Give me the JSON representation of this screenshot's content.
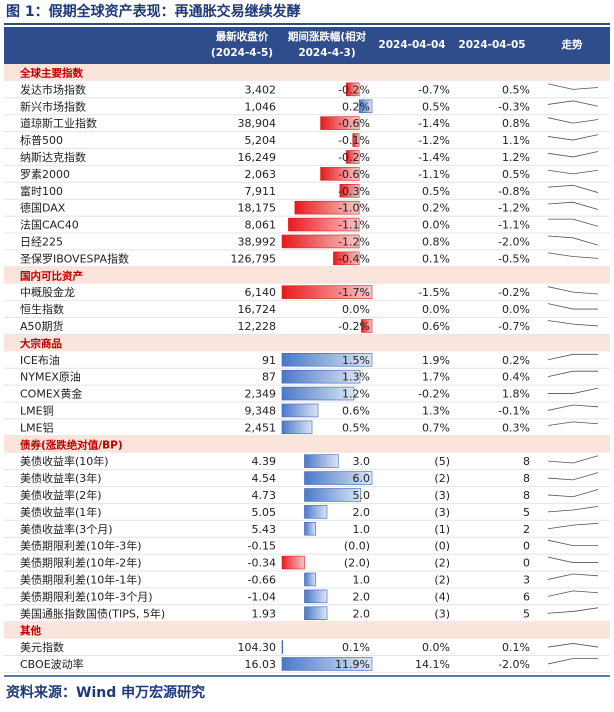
{
  "header": {
    "title": "图 1：假期全球资产表现：再通胀交易继续发酵"
  },
  "table": {
    "columns": [
      [
        "最新收盘价",
        "(2024-4-5)"
      ],
      [
        "期间涨跌幅(相对",
        "2024-4-3)"
      ],
      [
        "2024-04-04"
      ],
      [
        "2024-04-05"
      ],
      [
        "走势"
      ]
    ],
    "sections": [
      {
        "name": "全球主要指数",
        "rows": [
          {
            "name": "发达市场指数",
            "close": "3,402",
            "change": {
              "value": -0.2,
              "label": "-0.2%"
            },
            "d1": "-0.7%",
            "d2": "0.5%",
            "trend": [
              6,
              3,
              4
            ]
          },
          {
            "name": "新兴市场指数",
            "close": "1,046",
            "change": {
              "value": 0.2,
              "label": "0.2%"
            },
            "d1": "0.5%",
            "d2": "-0.3%",
            "trend": [
              4,
              6,
              3
            ]
          },
          {
            "name": "道琼斯工业指数",
            "close": "38,904",
            "change": {
              "value": -0.6,
              "label": "-0.6%"
            },
            "d1": "-1.4%",
            "d2": "0.8%",
            "trend": [
              6,
              3,
              5
            ]
          },
          {
            "name": "标普500",
            "close": "5,204",
            "change": {
              "value": -0.1,
              "label": "-0.1%"
            },
            "d1": "-1.2%",
            "d2": "1.1%",
            "trend": [
              5,
              3,
              6
            ]
          },
          {
            "name": "纳斯达克指数",
            "close": "16,249",
            "change": {
              "value": -0.2,
              "label": "-0.2%"
            },
            "d1": "-1.4%",
            "d2": "1.2%",
            "trend": [
              5,
              3,
              6
            ]
          },
          {
            "name": "罗素2000",
            "close": "2,063",
            "change": {
              "value": -0.6,
              "label": "-0.6%"
            },
            "d1": "-1.1%",
            "d2": "0.5%",
            "trend": [
              5,
              3,
              5
            ]
          },
          {
            "name": "富时100",
            "close": "7,911",
            "change": {
              "value": -0.3,
              "label": "-0.3%"
            },
            "d1": "0.5%",
            "d2": "-0.8%",
            "trend": [
              5,
              6,
              2
            ]
          },
          {
            "name": "德国DAX",
            "close": "18,175",
            "change": {
              "value": -1.0,
              "label": "-1.0%"
            },
            "d1": "0.2%",
            "d2": "-1.2%",
            "trend": [
              5,
              6,
              2
            ]
          },
          {
            "name": "法国CAC40",
            "close": "8,061",
            "change": {
              "value": -1.1,
              "label": "-1.1%"
            },
            "d1": "0.0%",
            "d2": "-1.1%",
            "trend": [
              6,
              6,
              2
            ]
          },
          {
            "name": "日经225",
            "close": "38,992",
            "change": {
              "value": -1.2,
              "label": "-1.2%"
            },
            "d1": "0.8%",
            "d2": "-2.0%",
            "trend": [
              6,
              5,
              1
            ]
          },
          {
            "name": "圣保罗IBOVESPA指数",
            "close": "126,795",
            "change": {
              "value": -0.4,
              "label": "-0.4%"
            },
            "d1": "0.1%",
            "d2": "-0.5%",
            "trend": [
              6,
              4,
              3
            ]
          }
        ]
      },
      {
        "name": "国内可比资产",
        "rows": [
          {
            "name": "中概股金龙",
            "close": "6,140",
            "change": {
              "value": -1.7,
              "label": "-1.7%"
            },
            "d1": "-1.5%",
            "d2": "-0.2%",
            "trend": [
              6,
              3,
              2
            ]
          },
          {
            "name": "恒生指数",
            "close": "16,724",
            "change": {
              "value": 0.0,
              "label": "0.0%"
            },
            "d1": "0.0%",
            "d2": "0.0%",
            "trend": [
              6,
              3,
              3
            ]
          },
          {
            "name": "A50期货",
            "close": "12,228",
            "change": {
              "value": -0.2,
              "label": "-0.2%"
            },
            "d1": "0.6%",
            "d2": "-0.7%",
            "trend": [
              6,
              4,
              3
            ]
          }
        ]
      },
      {
        "name": "大宗商品",
        "rows": [
          {
            "name": "ICE布油",
            "close": "91",
            "change": {
              "value": 1.5,
              "label": "1.5%"
            },
            "d1": "1.9%",
            "d2": "0.2%",
            "trend": [
              3,
              6,
              6
            ]
          },
          {
            "name": "NYMEX原油",
            "close": "87",
            "change": {
              "value": 1.3,
              "label": "1.3%"
            },
            "d1": "1.7%",
            "d2": "0.4%",
            "trend": [
              3,
              6,
              6
            ]
          },
          {
            "name": "COMEX黄金",
            "close": "2,349",
            "change": {
              "value": 1.2,
              "label": "1.2%"
            },
            "d1": "-0.2%",
            "d2": "1.8%",
            "trend": [
              3,
              3,
              6
            ]
          },
          {
            "name": "LME铜",
            "close": "9,348",
            "change": {
              "value": 0.6,
              "label": "0.6%"
            },
            "d1": "1.3%",
            "d2": "-0.1%",
            "trend": [
              3,
              6,
              5
            ]
          },
          {
            "name": "LME铝",
            "close": "2,451",
            "change": {
              "value": 0.5,
              "label": "0.5%"
            },
            "d1": "0.7%",
            "d2": "0.3%",
            "trend": [
              4,
              6,
              5
            ]
          }
        ]
      },
      {
        "name": "债券(涨跌绝对值/BP)",
        "rows": [
          {
            "name": "美债收益率(10年)",
            "close": "4.39",
            "change": {
              "value": 3.0,
              "label": "3.0"
            },
            "d1": "(5)",
            "d2": "8",
            "trend": [
              3,
              2,
              6
            ]
          },
          {
            "name": "美债收益率(3年)",
            "close": "4.54",
            "change": {
              "value": 6.0,
              "label": "6.0"
            },
            "d1": "(2)",
            "d2": "8",
            "trend": [
              3,
              2,
              6
            ]
          },
          {
            "name": "美债收益率(2年)",
            "close": "4.73",
            "change": {
              "value": 5.0,
              "label": "5.0"
            },
            "d1": "(3)",
            "d2": "8",
            "trend": [
              3,
              2,
              6
            ]
          },
          {
            "name": "美债收益率(1年)",
            "close": "5.05",
            "change": {
              "value": 2.0,
              "label": "2.0"
            },
            "d1": "(3)",
            "d2": "5",
            "trend": [
              3,
              4,
              6
            ]
          },
          {
            "name": "美债收益率(3个月)",
            "close": "5.43",
            "change": {
              "value": 1.0,
              "label": "1.0"
            },
            "d1": "(1)",
            "d2": "2",
            "trend": [
              3,
              5,
              6
            ]
          },
          {
            "name": "美债期限利差(10年-3年)",
            "close": "-0.15",
            "change": {
              "value": 0.0,
              "label": "(0.0)"
            },
            "d1": "(0)",
            "d2": "0",
            "trend": [
              6,
              3,
              3
            ]
          },
          {
            "name": "美债期限利差(10年-2年)",
            "close": "-0.34",
            "change": {
              "value": -2.0,
              "label": "(2.0)"
            },
            "d1": "(2)",
            "d2": "0",
            "trend": [
              6,
              3,
              3
            ]
          },
          {
            "name": "美债期限利差(10年-1年)",
            "close": "-0.66",
            "change": {
              "value": 1.0,
              "label": "1.0"
            },
            "d1": "(2)",
            "d2": "3",
            "trend": [
              3,
              6,
              5
            ]
          },
          {
            "name": "美债期限利差(10年-3个月)",
            "close": "-1.04",
            "change": {
              "value": 2.0,
              "label": "2.0"
            },
            "d1": "(4)",
            "d2": "6",
            "trend": [
              3,
              6,
              5
            ]
          },
          {
            "name": "美国通胀指数国债(TIPS, 5年)",
            "close": "1.93",
            "change": {
              "value": 2.0,
              "label": "2.0"
            },
            "d1": "(3)",
            "d2": "5",
            "trend": [
              3,
              4,
              6
            ]
          }
        ]
      },
      {
        "name": "其他",
        "rows": [
          {
            "name": "美元指数",
            "close": "104.30",
            "change": {
              "value": 0.1,
              "label": "0.1%"
            },
            "d1": "0.0%",
            "d2": "0.1%",
            "trend": [
              3,
              5,
              3
            ]
          },
          {
            "name": "CBOE波动率",
            "close": "16.03",
            "change": {
              "value": 11.9,
              "label": "11.9%"
            },
            "d1": "14.1%",
            "d2": "-2.0%",
            "trend": [
              3,
              6,
              6
            ]
          }
        ]
      }
    ]
  },
  "footer": {
    "source": "资料来源：Wind 申万宏源研究"
  }
}
